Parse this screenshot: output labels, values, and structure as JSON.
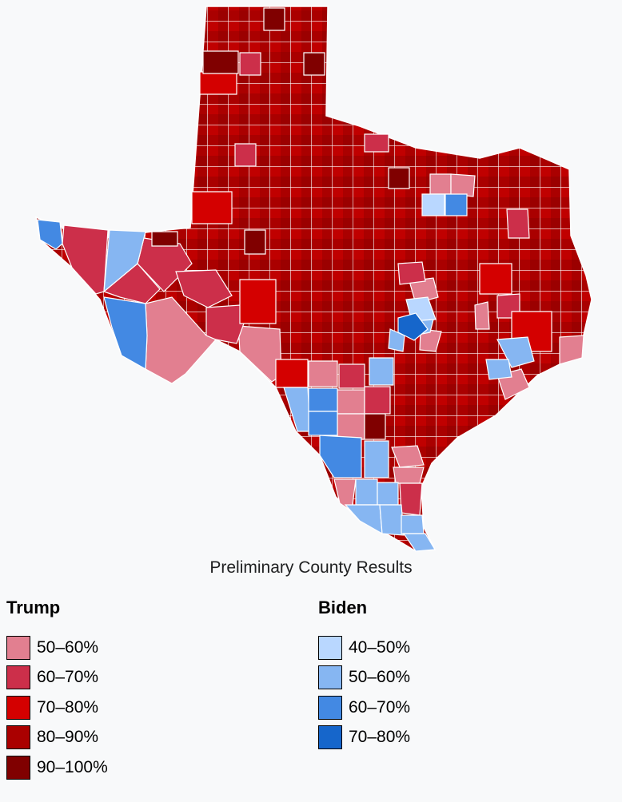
{
  "caption": "Preliminary County Results",
  "legend": {
    "trump": {
      "title": "Trump",
      "items": [
        {
          "label": "50–60%",
          "color": "#e27f90"
        },
        {
          "label": "60–70%",
          "color": "#cc2f4a"
        },
        {
          "label": "70–80%",
          "color": "#d40000"
        },
        {
          "label": "80–90%",
          "color": "#aa0000"
        },
        {
          "label": "90–100%",
          "color": "#800000"
        }
      ]
    },
    "biden": {
      "title": "Biden",
      "items": [
        {
          "label": "40–50%",
          "color": "#b9d7ff"
        },
        {
          "label": "50–60%",
          "color": "#86b6f2"
        },
        {
          "label": "60–70%",
          "color": "#4389e3"
        },
        {
          "label": "70–80%",
          "color": "#1666cb"
        }
      ]
    }
  }
}
